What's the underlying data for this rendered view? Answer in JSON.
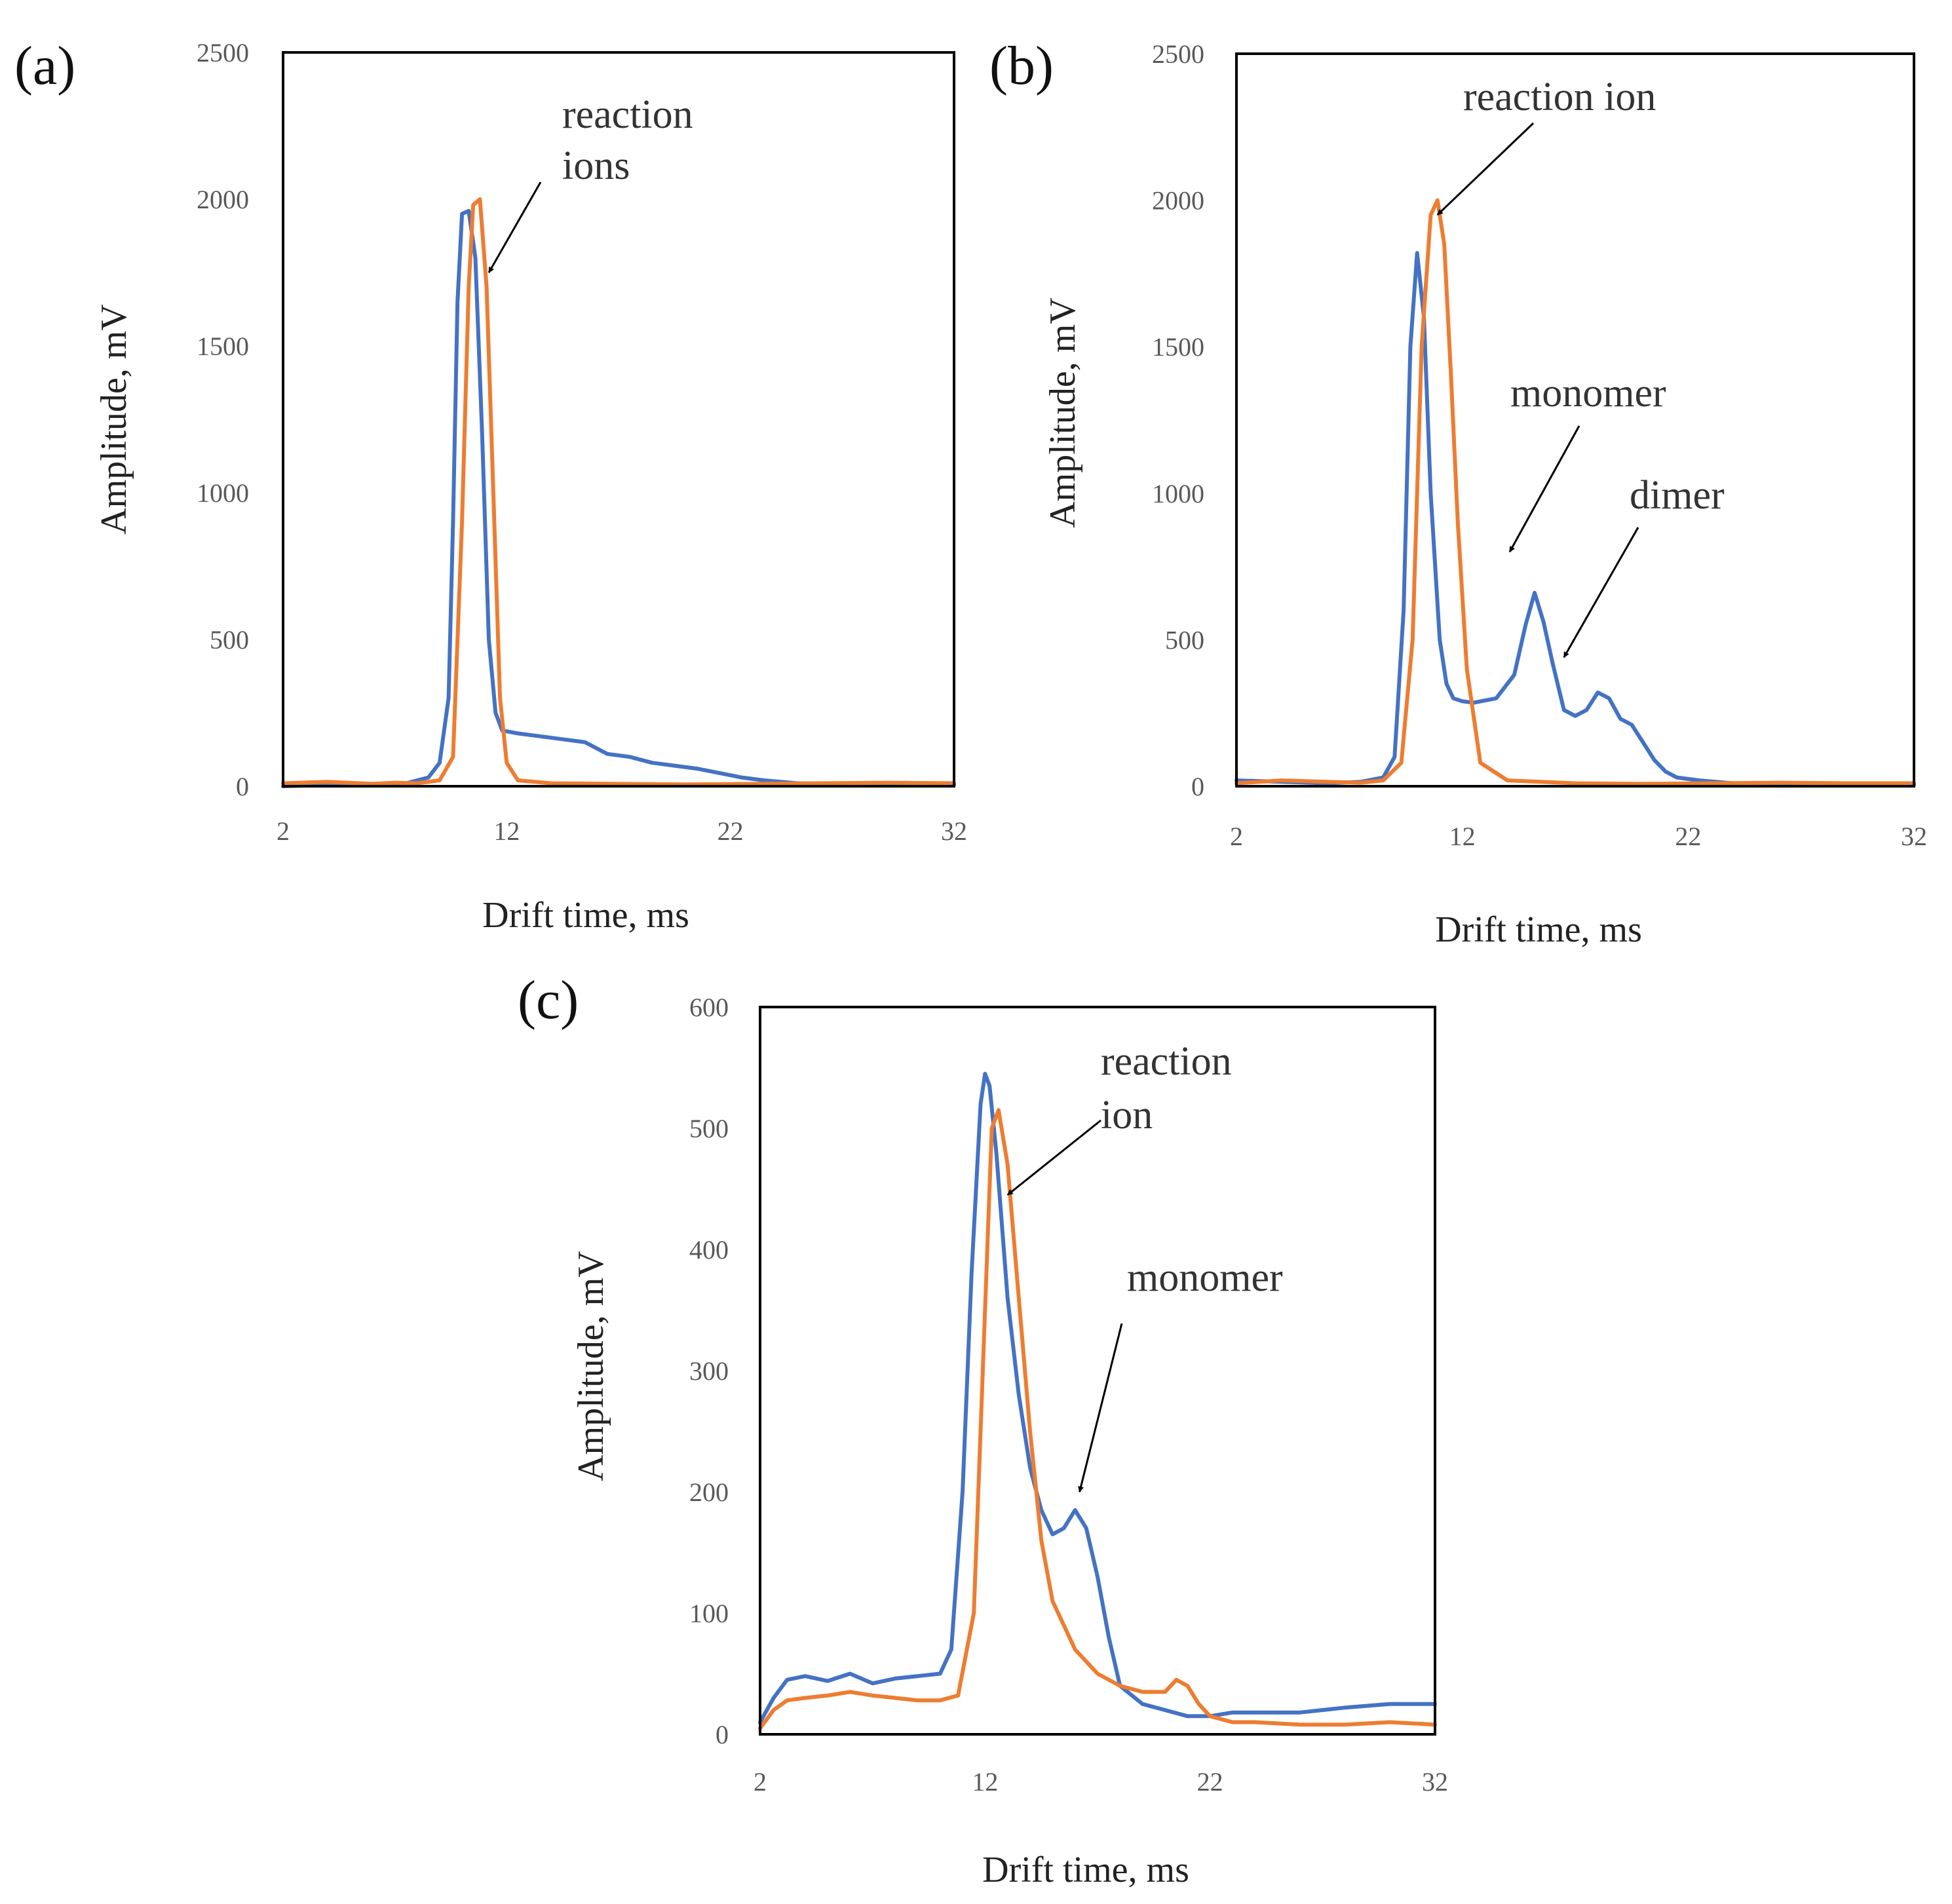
{
  "chart_data": [
    {
      "id": "a",
      "type": "line",
      "panel_label": "(a)",
      "xlabel": "Drift time, ms",
      "ylabel": "Amplitude, mV",
      "xlim": [
        2,
        32
      ],
      "ylim": [
        0,
        2500
      ],
      "xticks": [
        2,
        12,
        22,
        32
      ],
      "yticks": [
        0,
        500,
        1000,
        1500,
        2000,
        2500
      ],
      "colors": {
        "blue": "#4472C4",
        "orange": "#ED7D31"
      },
      "series": [
        {
          "name": "blue",
          "color": "#4472C4",
          "x": [
            2,
            4,
            6,
            7.5,
            8.5,
            9,
            9.4,
            9.6,
            9.8,
            10.0,
            10.3,
            10.6,
            10.9,
            11.2,
            11.5,
            11.8,
            12.5,
            13.5,
            14.5,
            15.5,
            16.5,
            17.5,
            18.5,
            19.5,
            20.5,
            21.5,
            22.5,
            23.5,
            25,
            28,
            32
          ],
          "y": [
            0,
            5,
            8,
            10,
            30,
            80,
            300,
            900,
            1650,
            1950,
            1960,
            1800,
            1200,
            500,
            250,
            190,
            180,
            170,
            160,
            150,
            110,
            100,
            80,
            70,
            60,
            45,
            30,
            20,
            10,
            5,
            5
          ]
        },
        {
          "name": "orange",
          "color": "#ED7D31",
          "x": [
            2,
            4,
            6,
            7,
            8,
            9,
            9.6,
            10.0,
            10.3,
            10.5,
            10.8,
            11.1,
            11.4,
            11.7,
            12.0,
            12.5,
            14,
            17,
            20,
            23,
            26,
            29,
            32
          ],
          "y": [
            10,
            15,
            8,
            12,
            10,
            20,
            100,
            900,
            1700,
            1980,
            2000,
            1700,
            1000,
            300,
            80,
            20,
            10,
            8,
            6,
            8,
            10,
            12,
            10
          ]
        }
      ],
      "annotations": [
        {
          "lines": [
            "reaction",
            "ions"
          ],
          "arrow_to": [
            11.2,
            1750
          ]
        }
      ]
    },
    {
      "id": "b",
      "type": "line",
      "panel_label": "(b)",
      "xlabel": "Drift time, ms",
      "ylabel": "Amplitude, mV",
      "xlim": [
        2,
        32
      ],
      "ylim": [
        0,
        2500
      ],
      "xticks": [
        2,
        12,
        22,
        32
      ],
      "yticks": [
        0,
        500,
        1000,
        1500,
        2000,
        2500
      ],
      "colors": {
        "blue": "#4472C4",
        "orange": "#ED7D31"
      },
      "series": [
        {
          "name": "blue",
          "color": "#4472C4",
          "x": [
            2,
            4,
            6,
            7.5,
            8.5,
            9.0,
            9.4,
            9.7,
            10.0,
            10.3,
            10.6,
            11.0,
            11.3,
            11.6,
            12.0,
            12.5,
            13.5,
            14.3,
            14.8,
            15.2,
            15.6,
            16.0,
            16.5,
            17.0,
            17.5,
            18.0,
            18.5,
            19.0,
            19.5,
            20.0,
            20.5,
            21.0,
            21.5,
            22.5,
            24,
            26,
            29,
            32
          ],
          "y": [
            20,
            15,
            10,
            15,
            30,
            100,
            600,
            1500,
            1820,
            1600,
            1000,
            500,
            350,
            300,
            290,
            285,
            300,
            380,
            550,
            660,
            560,
            420,
            260,
            240,
            260,
            320,
            300,
            230,
            210,
            150,
            90,
            50,
            30,
            20,
            10,
            5,
            5,
            5
          ]
        },
        {
          "name": "orange",
          "color": "#ED7D31",
          "x": [
            2,
            4,
            6,
            7.5,
            8.5,
            9.3,
            9.8,
            10.2,
            10.6,
            10.9,
            11.2,
            11.5,
            11.8,
            12.2,
            12.8,
            14,
            17,
            20,
            23,
            26,
            29,
            32
          ],
          "y": [
            10,
            20,
            15,
            12,
            20,
            80,
            500,
            1500,
            1950,
            2000,
            1850,
            1400,
            900,
            400,
            80,
            20,
            10,
            8,
            10,
            12,
            10,
            10
          ]
        }
      ],
      "annotations": [
        {
          "lines": [
            "reaction ion"
          ],
          "arrow_to": [
            10.9,
            1950
          ]
        },
        {
          "lines": [
            "monomer"
          ],
          "arrow_to": [
            14.1,
            800
          ]
        },
        {
          "lines": [
            "dimer"
          ],
          "arrow_to": [
            16.5,
            440
          ]
        }
      ]
    },
    {
      "id": "c",
      "type": "line",
      "panel_label": "(c)",
      "xlabel": "Drift time, ms",
      "ylabel": "Amplitude, mV",
      "xlim": [
        2,
        32
      ],
      "ylim": [
        0,
        600
      ],
      "xticks": [
        2,
        12,
        22,
        32
      ],
      "yticks": [
        0,
        100,
        200,
        300,
        400,
        500,
        600
      ],
      "colors": {
        "blue": "#4472C4",
        "orange": "#ED7D31"
      },
      "series": [
        {
          "name": "blue",
          "color": "#4472C4",
          "x": [
            2,
            2.6,
            3.2,
            4.0,
            5.0,
            6.0,
            7.0,
            8.0,
            9.0,
            10.0,
            10.5,
            11.0,
            11.4,
            11.8,
            12.0,
            12.2,
            12.5,
            13.0,
            13.5,
            14.0,
            14.5,
            15.0,
            15.5,
            16.0,
            16.5,
            17.0,
            17.5,
            18.0,
            19.0,
            20.0,
            21.0,
            22.0,
            23.0,
            24.0,
            26.0,
            28.0,
            30.0,
            32.0
          ],
          "y": [
            10,
            30,
            45,
            48,
            44,
            50,
            42,
            46,
            48,
            50,
            70,
            200,
            380,
            520,
            545,
            535,
            480,
            360,
            280,
            220,
            185,
            165,
            170,
            185,
            170,
            130,
            80,
            40,
            25,
            20,
            15,
            15,
            18,
            18,
            18,
            22,
            25,
            25
          ]
        },
        {
          "name": "orange",
          "color": "#ED7D31",
          "x": [
            2,
            2.6,
            3.2,
            4.0,
            5.0,
            6.0,
            7.0,
            8.0,
            9.0,
            10.0,
            10.8,
            11.5,
            12.0,
            12.3,
            12.6,
            13.0,
            13.5,
            14.0,
            14.5,
            15.0,
            16.0,
            17.0,
            18.0,
            19.0,
            20.0,
            20.5,
            21.0,
            21.5,
            22.0,
            23.0,
            24.0,
            26.0,
            28.0,
            30.0,
            32.0
          ],
          "y": [
            5,
            20,
            28,
            30,
            32,
            35,
            32,
            30,
            28,
            28,
            32,
            100,
            350,
            500,
            515,
            470,
            360,
            250,
            160,
            110,
            70,
            50,
            40,
            35,
            35,
            45,
            40,
            25,
            15,
            10,
            10,
            8,
            8,
            10,
            8
          ]
        }
      ],
      "annotations": [
        {
          "lines": [
            "reaction",
            "ion"
          ],
          "arrow_to": [
            13.0,
            445
          ]
        },
        {
          "lines": [
            "monomer"
          ],
          "arrow_to": [
            16.2,
            200
          ]
        }
      ]
    }
  ]
}
